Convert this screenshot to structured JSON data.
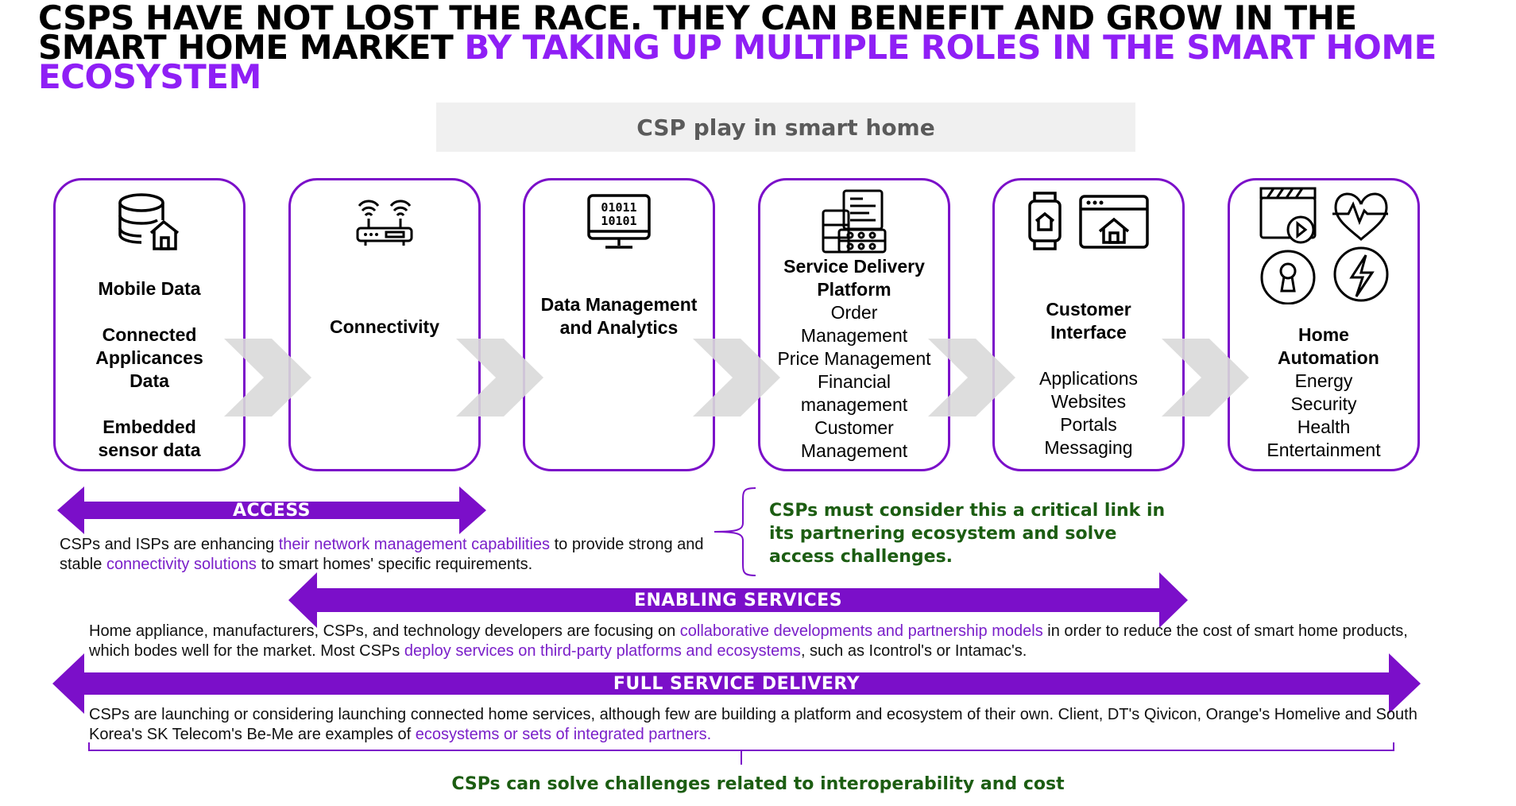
{
  "title": {
    "black": "CSPS HAVE NOT LOST THE RACE. THEY CAN BENEFIT AND GROW IN THE SMART HOME MARKET",
    "purple": "BY TAKING UP MULTIPLE ROLES IN THE SMART HOME ECOSYSTEM"
  },
  "banner": "CSP play in smart home",
  "cards": [
    {
      "bold": [
        "Mobile Data",
        "",
        "Connected Applicances Data",
        "",
        "Embedded sensor data"
      ],
      "items": [],
      "icon": "database-home-icon"
    },
    {
      "bold": [
        "Connectivity"
      ],
      "items": [],
      "icon": "wifi-router-icon"
    },
    {
      "bold": [
        "Data Management and Analytics"
      ],
      "items": [],
      "icon": "binary-monitor-icon"
    },
    {
      "bold": [
        "Service Delivery Platform"
      ],
      "items": [
        "Order Management",
        "Price Management",
        "Financial management",
        "Customer Management"
      ],
      "icon": "server-documents-icon"
    },
    {
      "bold": [
        "Customer Interface"
      ],
      "items": [
        "",
        "Applications",
        "Websites",
        "Portals",
        "Messaging"
      ],
      "icon": "smartwatch-browser-icon"
    },
    {
      "bold": [
        "Home Automation"
      ],
      "items": [
        "Energy",
        "Security",
        "Health",
        "Entertainment"
      ],
      "icon": "home-automation-icons"
    }
  ],
  "bars": {
    "access": "ACCESS",
    "enabling": "ENABLING SERVICES",
    "full": "FULL SERVICE DELIVERY"
  },
  "paragraphs": {
    "access": {
      "a": "CSPs and ISPs are enhancing ",
      "b": "their network management capabilities",
      "c": " to provide strong and stable ",
      "d": "connectivity solutions",
      "e": " to smart homes' specific requirements."
    },
    "enabling": {
      "a": "Home appliance, manufacturers, CSPs, and technology developers are focusing on ",
      "b": "collaborative developments and partnership models",
      "c": " in order to reduce the cost of smart home products, which bodes well for the market. Most CSPs ",
      "d": "deploy services on third-party platforms and ecosystems",
      "e": ", such as Icontrol's or Intamac's."
    },
    "full": {
      "a": "CSPs are launching or considering launching connected home services, although few are building a platform and ecosystem of their own. Client, DT's Qivicon, Orange's Homelive and South Korea's SK Telecom's Be-Me are examples of ",
      "b": "ecosystems or sets of integrated partners."
    }
  },
  "callouts": {
    "access_link": "CSPs must consider this a critical link in its partnering ecosystem and solve access challenges.",
    "bottom": "CSPs can solve challenges related to interoperability and cost"
  },
  "colors": {
    "purple": "#7b0fc9",
    "accent": "#8f1ff5",
    "green": "#1c5d12",
    "chevron": "#d9d9d9"
  }
}
